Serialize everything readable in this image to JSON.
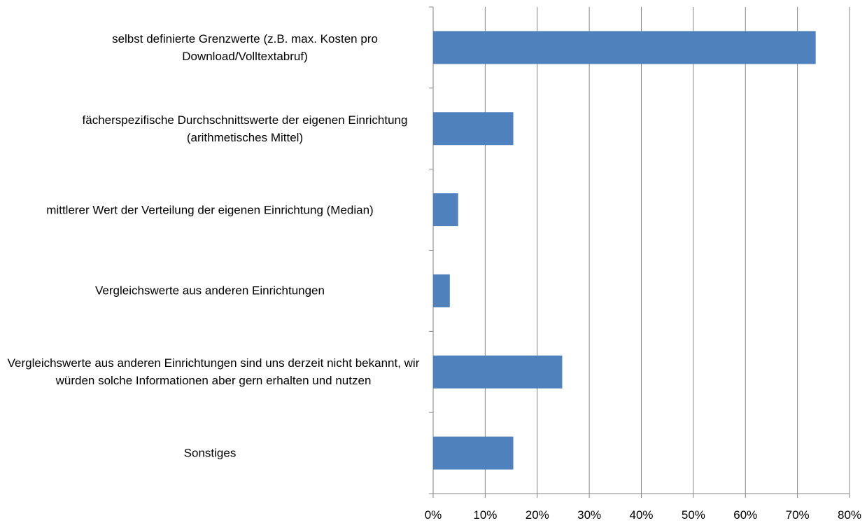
{
  "chart_data": {
    "type": "barh",
    "categories": [
      "selbst definierte Grenzwerte (z.B. max. Kosten pro Download/Volltextabruf)",
      "fächerspezifische Durchschnittswerte der eigenen Einrichtung (arithmetisches Mittel)",
      "mittlerer Wert der Verteilung der eigenen Einrichtung (Median)",
      "Vergleichswerte aus anderen Einrichtungen",
      "Vergleichswerte aus anderen Einrichtungen sind uns derzeit nicht bekannt, wir würden solche Informationen aber gern erhalten und nutzen",
      "Sonstiges"
    ],
    "values": [
      73.5,
      15.4,
      4.8,
      3.2,
      24.8,
      15.4
    ],
    "color": "#4f81bd",
    "xlim": [
      0,
      80
    ],
    "xticks": [
      {
        "value": 0,
        "label": "0%"
      },
      {
        "value": 10,
        "label": "10%"
      },
      {
        "value": 20,
        "label": "20%"
      },
      {
        "value": 30,
        "label": "30%"
      },
      {
        "value": 40,
        "label": "40%"
      },
      {
        "value": 50,
        "label": "50%"
      },
      {
        "value": 60,
        "label": "60%"
      },
      {
        "value": 70,
        "label": "70%"
      },
      {
        "value": 80,
        "label": "80%"
      }
    ],
    "grid": true
  }
}
